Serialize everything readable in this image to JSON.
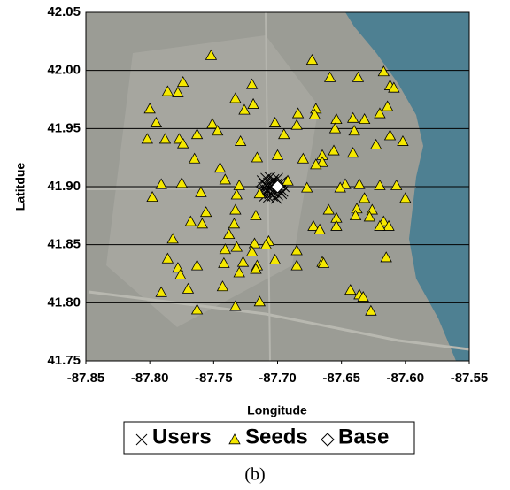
{
  "chart_data": {
    "type": "scatter",
    "caption": "(b)",
    "x_label": "Longitude",
    "y_label": "Latitdue",
    "xlim": [
      -87.85,
      -87.55
    ],
    "ylim": [
      41.75,
      42.05
    ],
    "xticks": [
      -87.85,
      {
        "value": -87.8,
        "label": "-87.80"
      },
      -87.75,
      {
        "value": -87.7,
        "label": "-87.70"
      },
      -87.65,
      {
        "value": -87.6,
        "label": "-87.60"
      },
      -87.55
    ],
    "yticks": [
      {
        "value": 41.75,
        "label": "41.75"
      },
      {
        "value": 41.8,
        "label": "41.80"
      },
      {
        "value": 41.85,
        "label": "41.85"
      },
      {
        "value": 41.9,
        "label": "41.90"
      },
      {
        "value": 41.95,
        "label": "41.95"
      },
      {
        "value": 42,
        "label": "42.00"
      },
      {
        "value": 42.05,
        "label": "42.05"
      }
    ],
    "grid": true,
    "series": [
      {
        "name": "Users",
        "marker": "x",
        "color": "#000000",
        "x": [
          -87.712,
          -87.709,
          -87.706,
          -87.703,
          -87.7,
          -87.697,
          -87.71,
          -87.707,
          -87.704,
          -87.701,
          -87.698,
          -87.695,
          -87.711,
          -87.708,
          -87.705,
          -87.702,
          -87.699,
          -87.696,
          -87.713,
          -87.709,
          -87.706,
          -87.703,
          -87.7,
          -87.697,
          -87.71,
          -87.707,
          -87.704,
          -87.701,
          -87.705,
          -87.708
        ],
        "y": [
          41.905,
          41.907,
          41.908,
          41.906,
          41.907,
          41.904,
          41.902,
          41.903,
          41.904,
          41.902,
          41.903,
          41.9,
          41.899,
          41.9,
          41.899,
          41.898,
          41.897,
          41.896,
          41.896,
          41.895,
          41.894,
          41.895,
          41.893,
          41.894,
          41.892,
          41.891,
          41.892,
          41.89,
          41.901,
          41.897
        ]
      },
      {
        "name": "Seeds",
        "marker": "triangle",
        "color": "#f5e800",
        "x": [
          -87.673,
          -87.617,
          -87.612,
          -87.609,
          -87.637,
          -87.659,
          -87.752,
          -87.72,
          -87.774,
          -87.786,
          -87.778,
          -87.8,
          -87.733,
          -87.719,
          -87.684,
          -87.67,
          -87.671,
          -87.726,
          -87.62,
          -87.614,
          -87.641,
          -87.654,
          -87.632,
          -87.795,
          -87.751,
          -87.747,
          -87.702,
          -87.685,
          -87.64,
          -87.612,
          -87.802,
          -87.788,
          -87.777,
          -87.774,
          -87.763,
          -87.729,
          -87.695,
          -87.655,
          -87.602,
          -87.623,
          -87.765,
          -87.7,
          -87.68,
          -87.665,
          -87.656,
          -87.641,
          -87.665,
          -87.67,
          -87.745,
          -87.716,
          -87.791,
          -87.775,
          -87.76,
          -87.741,
          -87.732,
          -87.692,
          -87.677,
          -87.647,
          -87.62,
          -87.607,
          -87.798,
          -87.651,
          -87.632,
          -87.6,
          -87.73,
          -87.714,
          -87.636,
          -87.733,
          -87.756,
          -87.66,
          -87.638,
          -87.626,
          -87.628,
          -87.639,
          -87.654,
          -87.617,
          -87.613,
          -87.62,
          -87.768,
          -87.759,
          -87.734,
          -87.717,
          -87.672,
          -87.667,
          -87.654,
          -87.738,
          -87.782,
          -87.707,
          -87.718,
          -87.709,
          -87.685,
          -87.741,
          -87.72,
          -87.732,
          -87.786,
          -87.615,
          -87.665,
          -87.702,
          -87.742,
          -87.727,
          -87.763,
          -87.778,
          -87.716,
          -87.717,
          -87.685,
          -87.776,
          -87.73,
          -87.664,
          -87.791,
          -87.77,
          -87.743,
          -87.643,
          -87.636,
          -87.633,
          -87.763,
          -87.733,
          -87.714,
          -87.627
        ],
        "y": [
          42.009,
          41.999,
          41.987,
          41.985,
          41.994,
          41.994,
          42.013,
          41.988,
          41.99,
          41.982,
          41.981,
          41.967,
          41.976,
          41.971,
          41.963,
          41.967,
          41.962,
          41.966,
          41.963,
          41.969,
          41.959,
          41.958,
          41.958,
          41.955,
          41.954,
          41.948,
          41.955,
          41.953,
          41.948,
          41.944,
          41.941,
          41.941,
          41.941,
          41.937,
          41.945,
          41.939,
          41.945,
          41.95,
          41.939,
          41.936,
          41.924,
          41.927,
          41.924,
          41.927,
          41.931,
          41.929,
          41.921,
          41.919,
          41.916,
          41.925,
          41.902,
          41.903,
          41.895,
          41.906,
          41.893,
          41.905,
          41.899,
          41.902,
          41.901,
          41.901,
          41.891,
          41.899,
          41.89,
          41.89,
          41.901,
          41.894,
          41.902,
          41.88,
          41.878,
          41.88,
          41.881,
          41.88,
          41.874,
          41.875,
          41.873,
          41.87,
          41.866,
          41.866,
          41.87,
          41.868,
          41.868,
          41.875,
          41.866,
          41.863,
          41.866,
          41.859,
          41.855,
          41.853,
          41.851,
          41.85,
          41.845,
          41.846,
          41.844,
          41.848,
          41.838,
          41.839,
          41.835,
          41.837,
          41.834,
          41.835,
          41.832,
          41.83,
          41.832,
          41.829,
          41.832,
          41.824,
          41.826,
          41.834,
          41.809,
          41.812,
          41.814,
          41.811,
          41.807,
          41.805,
          41.794,
          41.797,
          41.801,
          41.793
        ]
      },
      {
        "name": "Base",
        "marker": "diamond",
        "color": "#ffffff",
        "x": [
          -87.7
        ],
        "y": [
          41.9
        ]
      }
    ]
  }
}
